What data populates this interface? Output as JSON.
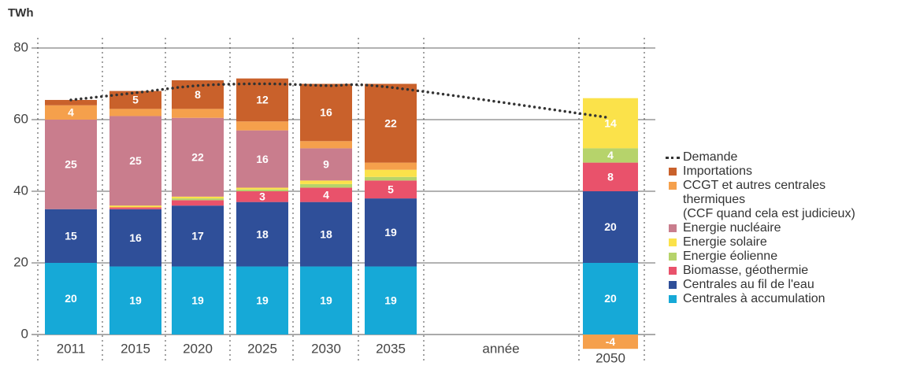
{
  "chart_data": {
    "type": "bar",
    "stacked": true,
    "y_label": "TWh",
    "x_label": "année",
    "categories": [
      "2011",
      "2015",
      "2020",
      "2025",
      "2030",
      "2035",
      "2050"
    ],
    "ylim": [
      -5,
      85
    ],
    "yticks": [
      0,
      20,
      40,
      60,
      80
    ],
    "grid": true,
    "series": [
      {
        "name": "Importations",
        "color": "#c9612b",
        "values": [
          1.5,
          5,
          8,
          12,
          16,
          22,
          0
        ]
      },
      {
        "name": "CCGT et autres centrales\nthermiques\n(CCF quand cela est judicieux)",
        "color": "#f5a04c",
        "values": [
          4,
          2,
          2.5,
          2.5,
          2,
          2,
          -4
        ]
      },
      {
        "name": "Energie nucléaire",
        "color": "#c97d8d",
        "values": [
          25,
          25,
          22,
          16,
          9,
          0,
          0
        ]
      },
      {
        "name": "Energie solaire",
        "color": "#fbe24a",
        "values": [
          0,
          0.5,
          0.5,
          0.5,
          1,
          2,
          14
        ]
      },
      {
        "name": "Energie éolienne",
        "color": "#b6d36b",
        "values": [
          0,
          0,
          0.5,
          0.5,
          1,
          1,
          4
        ]
      },
      {
        "name": "Biomasse, géothermie",
        "color": "#e9526b",
        "values": [
          0,
          0.5,
          1.5,
          3,
          4,
          5,
          8
        ]
      },
      {
        "name": "Centrales au fil de l'eau",
        "color": "#2f4f99",
        "values": [
          15,
          16,
          17,
          18,
          18,
          19,
          20
        ]
      },
      {
        "name": "Centrales à accumulation",
        "color": "#16a9d7",
        "values": [
          20,
          19,
          19,
          19,
          19,
          19,
          20
        ]
      }
    ],
    "line": {
      "type": "line",
      "name": "Demande",
      "color": "#333333",
      "values": [
        65.5,
        67.5,
        69.5,
        70,
        69.5,
        69,
        60.5
      ]
    }
  }
}
